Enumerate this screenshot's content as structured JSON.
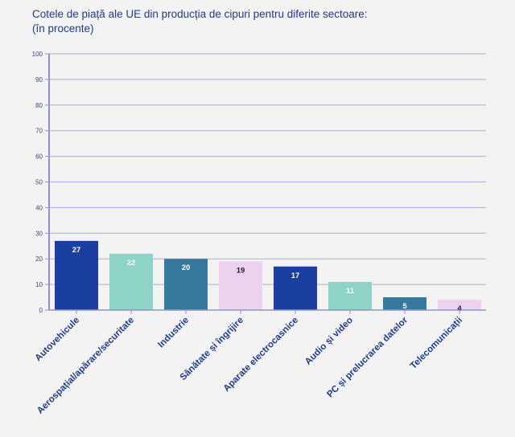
{
  "chart_data": {
    "type": "bar",
    "title": "Cotele de piață ale UE din producția de cipuri pentru diferite sectoare:",
    "subtitle": "(în procente)",
    "xlabel": "",
    "ylabel": "",
    "ylim": [
      0,
      100
    ],
    "yticks": [
      0,
      10,
      20,
      30,
      40,
      50,
      60,
      70,
      80,
      90,
      100
    ],
    "grid": true,
    "categories": [
      "Autovehicule",
      "Aerospațial/apărare/securitate",
      "Industrie",
      "Sănătate și îngrijire",
      "Aparate electrocasnice",
      "Audio și video",
      "PC și prelucrarea datelor",
      "Telecomunicații"
    ],
    "values": [
      27,
      22,
      20,
      19,
      17,
      11,
      5,
      4
    ],
    "bar_colors": [
      "#1a3fa0",
      "#8dd4c6",
      "#36799c",
      "#ecd2ee",
      "#1a3fa0",
      "#8dd4c6",
      "#36799c",
      "#ecd2ee"
    ],
    "label_colors": [
      "#ffffff",
      "#ffffff",
      "#ffffff",
      "#1c1c3a",
      "#ffffff",
      "#ffffff",
      "#ffffff",
      "#1c1c3a"
    ]
  },
  "colors": {
    "title": "#1f3b8f",
    "axis": "#8f93d0",
    "grid": "#a9add8"
  }
}
